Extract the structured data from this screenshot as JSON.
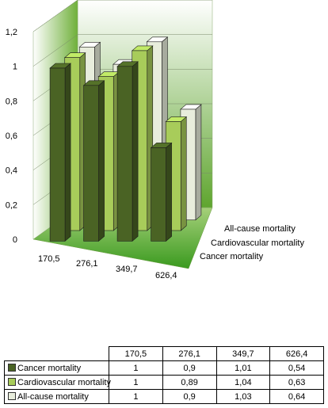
{
  "chart_data": {
    "type": "bar",
    "categories": [
      "170,5",
      "276,1",
      "349,7",
      "626,4"
    ],
    "series": [
      {
        "name": "Cancer mortality",
        "values": [
          1,
          0.9,
          1.01,
          0.54
        ],
        "labels": [
          "1",
          "0,9",
          "1,01",
          "0,54"
        ],
        "color": "#4a6324"
      },
      {
        "name": "Cardiovascular mortality",
        "values": [
          1,
          0.89,
          1.04,
          0.63
        ],
        "labels": [
          "1",
          "0,89",
          "1,04",
          "0,63"
        ],
        "color": "#a8cc5a"
      },
      {
        "name": "All-cause mortality",
        "values": [
          1,
          0.9,
          1.03,
          0.64
        ],
        "labels": [
          "1",
          "0,9",
          "1,03",
          "0,64"
        ],
        "color": "#e8eddc"
      }
    ],
    "yticks": [
      "0",
      "0,2",
      "0,4",
      "0,6",
      "0,8",
      "1",
      "1,2"
    ],
    "ylim": [
      0,
      1.2
    ],
    "grid": true,
    "legend": "data-table"
  }
}
